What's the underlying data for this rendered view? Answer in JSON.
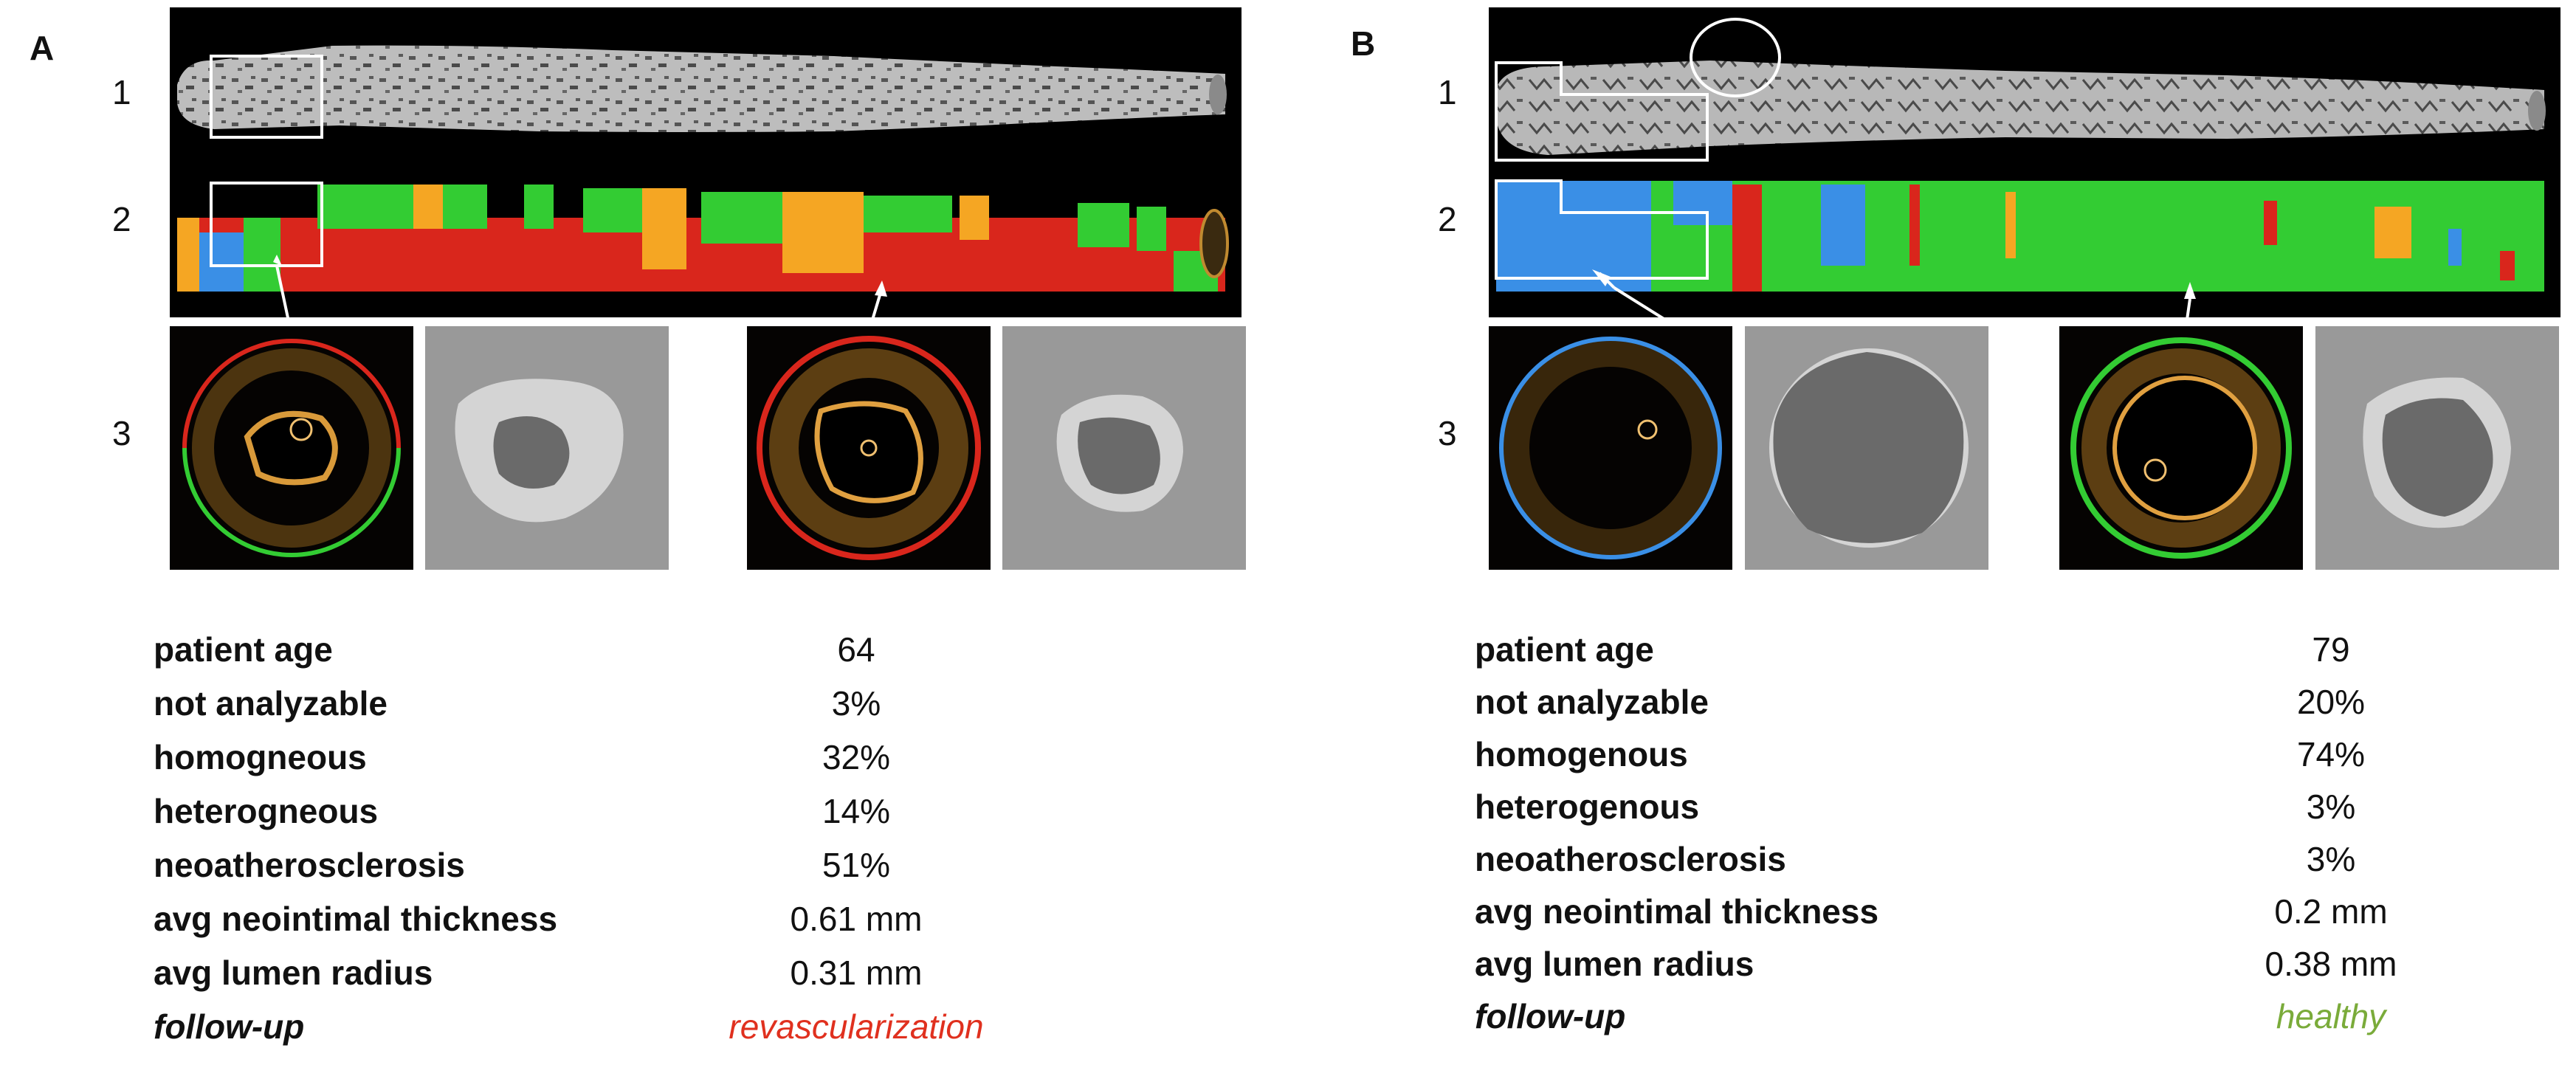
{
  "panels": [
    {
      "letter": "A",
      "row_labels": [
        "1",
        "2",
        "3"
      ],
      "stats": [
        {
          "label": "patient age",
          "value": "64"
        },
        {
          "label": "not analyzable",
          "value": "3%"
        },
        {
          "label": "homogneous",
          "value": "32%"
        },
        {
          "label": "heterogneous",
          "value": "14%"
        },
        {
          "label": "neoatherosclerosis",
          "value": "51%"
        },
        {
          "label": "avg neointimal thickness",
          "value": "0.61 mm"
        },
        {
          "label": "avg lumen radius",
          "value": "0.31 mm"
        }
      ],
      "followup": {
        "label": "follow-up",
        "value": "revascularization",
        "color": "#e0301e"
      }
    },
    {
      "letter": "B",
      "row_labels": [
        "1",
        "2",
        "3"
      ],
      "stats": [
        {
          "label": "patient age",
          "value": "79"
        },
        {
          "label": "not analyzable",
          "value": "20%"
        },
        {
          "label": "homogenous",
          "value": "74%"
        },
        {
          "label": "heterogenous",
          "value": "3%"
        },
        {
          "label": "neoatherosclerosis",
          "value": "3%"
        },
        {
          "label": "avg neointimal thickness",
          "value": "0.2 mm"
        },
        {
          "label": "avg lumen radius",
          "value": "0.38 mm"
        }
      ],
      "followup": {
        "label": "follow-up",
        "value": "healthy",
        "color": "#7aab3a"
      }
    }
  ],
  "colors": {
    "not_analyzable": "#3a8fe6",
    "homogeneous": "#33cc33",
    "heterogeneous": "#f5a623",
    "neoatherosclerosis": "#d9261c"
  }
}
